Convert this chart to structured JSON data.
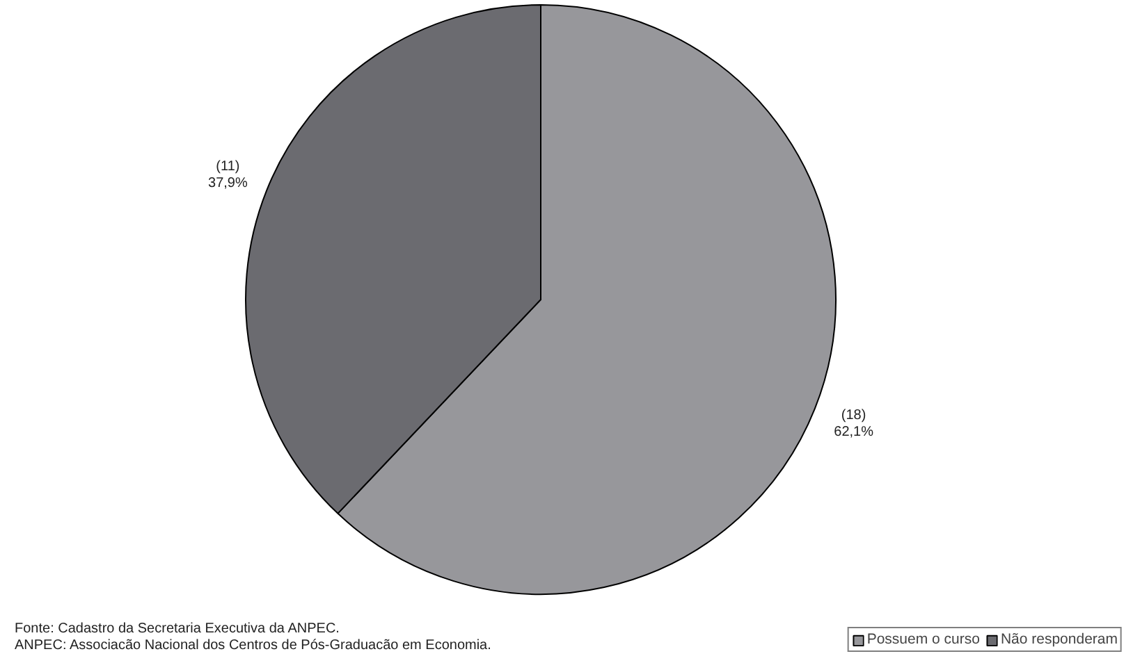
{
  "chart_data": {
    "type": "pie",
    "categories": [
      "Possuem o curso",
      "Não responderam"
    ],
    "values": [
      18,
      11
    ],
    "colors": [
      "#97979b",
      "#6b6b70"
    ],
    "value_labels": [
      "(18)\n62,1%",
      "(11)\n37,9%"
    ],
    "legend": "bottom right",
    "annotations": [
      "Fonte: Cadastro da Secretaria Executiva da ANPEC.",
      "ANPEC: Associacão Nacional dos Centros de Pós-Graduacão em Economia."
    ]
  }
}
